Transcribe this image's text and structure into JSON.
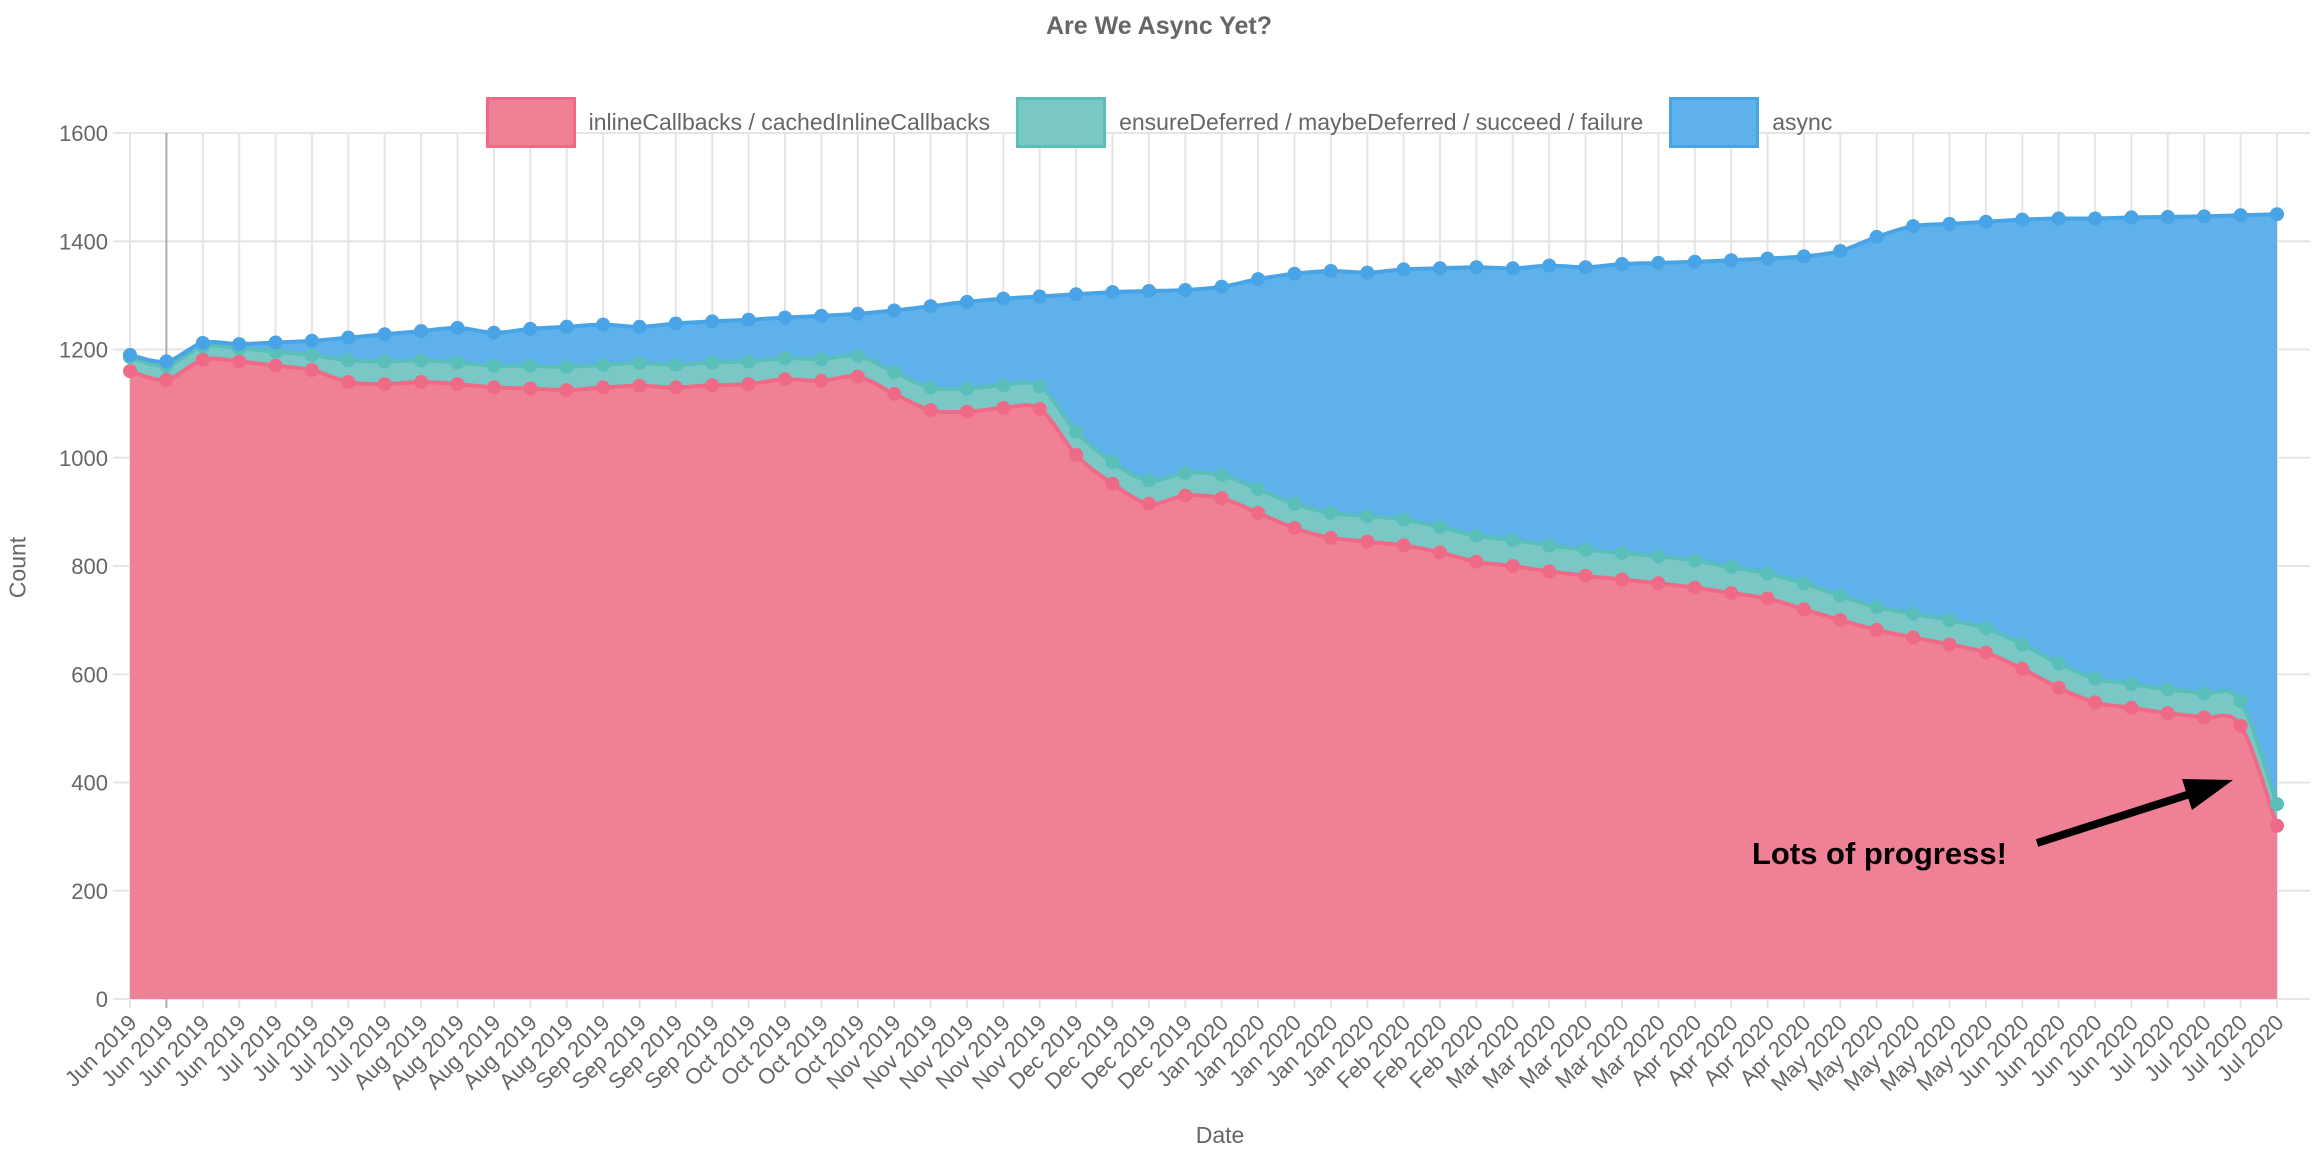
{
  "title": "Are We Async Yet?",
  "legend": [
    {
      "label": "inlineCallbacks / cachedInlineCallbacks",
      "fill": "#F08096",
      "stroke": "#EF6A86"
    },
    {
      "label": "ensureDeferred / maybeDeferred / succeed / failure",
      "fill": "#79C8C5",
      "stroke": "#5ABEB9"
    },
    {
      "label": "async",
      "fill": "#5EB1EB",
      "stroke": "#48A4E6"
    }
  ],
  "annotation": {
    "text": "Lots of progress!"
  },
  "colors": {
    "text": "#666666",
    "grid": "#E5E5E5",
    "grid_dark": "#ABABAB"
  },
  "chart_data": {
    "type": "area",
    "stacked": true,
    "title": "Are We Async Yet?",
    "xlabel": "Date",
    "ylabel": "Count",
    "ylim": [
      0,
      1600
    ],
    "ytick_step": 200,
    "grid": true,
    "legend_position": "top",
    "point_markers": true,
    "categories": [
      "Jun 2019",
      "Jun 2019",
      "Jun 2019",
      "Jun 2019",
      "Jul 2019",
      "Jul 2019",
      "Jul 2019",
      "Jul 2019",
      "Aug 2019",
      "Aug 2019",
      "Aug 2019",
      "Aug 2019",
      "Aug 2019",
      "Sep 2019",
      "Sep 2019",
      "Sep 2019",
      "Sep 2019",
      "Oct 2019",
      "Oct 2019",
      "Oct 2019",
      "Oct 2019",
      "Nov 2019",
      "Nov 2019",
      "Nov 2019",
      "Nov 2019",
      "Nov 2019",
      "Dec 2019",
      "Dec 2019",
      "Dec 2019",
      "Dec 2019",
      "Jan 2020",
      "Jan 2020",
      "Jan 2020",
      "Jan 2020",
      "Jan 2020",
      "Feb 2020",
      "Feb 2020",
      "Feb 2020",
      "Mar 2020",
      "Mar 2020",
      "Mar 2020",
      "Mar 2020",
      "Mar 2020",
      "Apr 2020",
      "Apr 2020",
      "Apr 2020",
      "Apr 2020",
      "May 2020",
      "May 2020",
      "May 2020",
      "May 2020",
      "May 2020",
      "Jun 2020",
      "Jun 2020",
      "Jun 2020",
      "Jun 2020",
      "Jul 2020",
      "Jul 2020",
      "Jul 2020",
      "Jul 2020"
    ],
    "series": [
      {
        "name": "inlineCallbacks / cachedInlineCallbacks",
        "fill": "#F08096",
        "stroke": "#EF6A86",
        "values": [
          1160,
          1144,
          1181,
          1178,
          1170,
          1162,
          1140,
          1136,
          1140,
          1136,
          1130,
          1128,
          1125,
          1130,
          1133,
          1130,
          1134,
          1136,
          1145,
          1142,
          1150,
          1118,
          1088,
          1085,
          1092,
          1090,
          1005,
          952,
          915,
          930,
          925,
          898,
          870,
          852,
          845,
          838,
          825,
          808,
          800,
          790,
          782,
          775,
          768,
          760,
          750,
          740,
          720,
          700,
          682,
          668,
          655,
          640,
          610,
          575,
          548,
          538,
          528,
          520,
          505,
          320
        ]
      },
      {
        "name": "ensureDeferred / maybeDeferred / succeed / failure",
        "fill": "#79C8C5",
        "stroke": "#5ABEB9",
        "values": [
          26,
          26,
          25,
          24,
          26,
          28,
          40,
          42,
          40,
          40,
          40,
          42,
          43,
          42,
          42,
          42,
          42,
          42,
          39,
          40,
          38,
          40,
          42,
          43,
          42,
          42,
          43,
          40,
          43,
          42,
          43,
          44,
          45,
          46,
          47,
          48,
          47,
          48,
          48,
          48,
          48,
          49,
          50,
          50,
          48,
          46,
          48,
          45,
          42,
          44,
          45,
          45,
          45,
          45,
          44,
          44,
          44,
          45,
          45,
          40
        ]
      },
      {
        "name": "async",
        "fill": "#5EB1EB",
        "stroke": "#48A4E6",
        "values": [
          4,
          8,
          6,
          8,
          17,
          26,
          42,
          50,
          54,
          64,
          61,
          68,
          74,
          74,
          67,
          76,
          76,
          77,
          75,
          80,
          78,
          114,
          150,
          160,
          160,
          166,
          254,
          314,
          350,
          338,
          348,
          388,
          425,
          447,
          450,
          462,
          478,
          496,
          502,
          517,
          522,
          534,
          542,
          552,
          567,
          582,
          604,
          637,
          684,
          716,
          732,
          751,
          785,
          822,
          850,
          862,
          873,
          881,
          898,
          1090
        ]
      }
    ]
  }
}
